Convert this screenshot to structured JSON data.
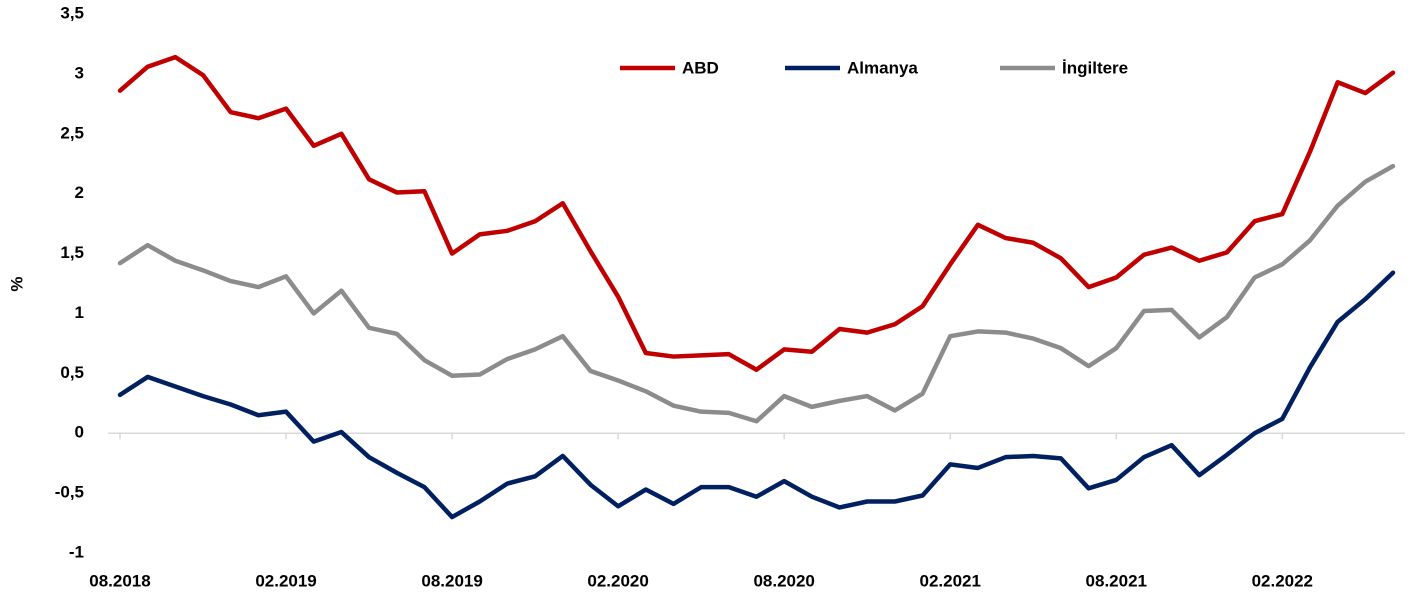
{
  "chart_data": {
    "type": "line",
    "y_label": "%",
    "categories": [
      "08.2018",
      null,
      null,
      null,
      null,
      null,
      "02.2019",
      null,
      null,
      null,
      null,
      null,
      "08.2019",
      null,
      null,
      null,
      null,
      null,
      "02.2020",
      null,
      null,
      null,
      null,
      null,
      "08.2020",
      null,
      null,
      null,
      null,
      null,
      "02.2021",
      null,
      null,
      null,
      null,
      null,
      "08.2021",
      null,
      null,
      null,
      null,
      null,
      "02.2022",
      null,
      null,
      null,
      null
    ],
    "series": [
      {
        "name": "ABD",
        "color": "#c00000",
        "values": [
          2.86,
          3.06,
          3.14,
          2.99,
          2.68,
          2.63,
          2.71,
          2.4,
          2.5,
          2.12,
          2.01,
          2.02,
          1.5,
          1.66,
          1.69,
          1.77,
          1.92,
          1.52,
          1.14,
          0.67,
          0.64,
          0.65,
          0.66,
          0.53,
          0.7,
          0.68,
          0.87,
          0.84,
          0.91,
          1.06,
          1.41,
          1.74,
          1.63,
          1.59,
          1.46,
          1.22,
          1.3,
          1.49,
          1.55,
          1.44,
          1.51,
          1.77,
          1.83,
          2.35,
          2.93,
          2.84,
          3.01
        ]
      },
      {
        "name": "Almanya",
        "color": "#002060",
        "values": [
          0.32,
          0.47,
          0.39,
          0.31,
          0.24,
          0.15,
          0.18,
          -0.07,
          0.01,
          -0.2,
          -0.33,
          -0.45,
          -0.7,
          -0.57,
          -0.42,
          -0.36,
          -0.19,
          -0.43,
          -0.61,
          -0.47,
          -0.59,
          -0.45,
          -0.45,
          -0.53,
          -0.4,
          -0.53,
          -0.62,
          -0.57,
          -0.57,
          -0.52,
          -0.26,
          -0.29,
          -0.2,
          -0.19,
          -0.21,
          -0.46,
          -0.39,
          -0.2,
          -0.1,
          -0.35,
          -0.18,
          0.0,
          0.12,
          0.55,
          0.93,
          1.12,
          1.34
        ]
      },
      {
        "name": "İngiltere",
        "color": "#8c8c8c",
        "values": [
          1.42,
          1.57,
          1.44,
          1.36,
          1.27,
          1.22,
          1.31,
          1.0,
          1.19,
          0.88,
          0.83,
          0.61,
          0.48,
          0.49,
          0.62,
          0.7,
          0.81,
          0.52,
          0.44,
          0.35,
          0.23,
          0.18,
          0.17,
          0.1,
          0.31,
          0.22,
          0.27,
          0.31,
          0.19,
          0.33,
          0.81,
          0.85,
          0.84,
          0.79,
          0.71,
          0.56,
          0.71,
          1.02,
          1.03,
          0.8,
          0.97,
          1.3,
          1.41,
          1.61,
          1.9,
          2.1,
          2.23
        ]
      }
    ],
    "ylim": [
      -1,
      3.5
    ],
    "yticks": [
      {
        "value": -1,
        "label": "-1"
      },
      {
        "value": -0.5,
        "label": "-0,5"
      },
      0,
      {
        "value": 0.5,
        "label": "0,5"
      },
      1,
      {
        "value": 1.5,
        "label": "1,5"
      },
      2,
      {
        "value": 2.5,
        "label": "2,5"
      },
      3,
      {
        "value": 3.5,
        "label": "3,5"
      }
    ],
    "grid": false,
    "legend": "top"
  }
}
